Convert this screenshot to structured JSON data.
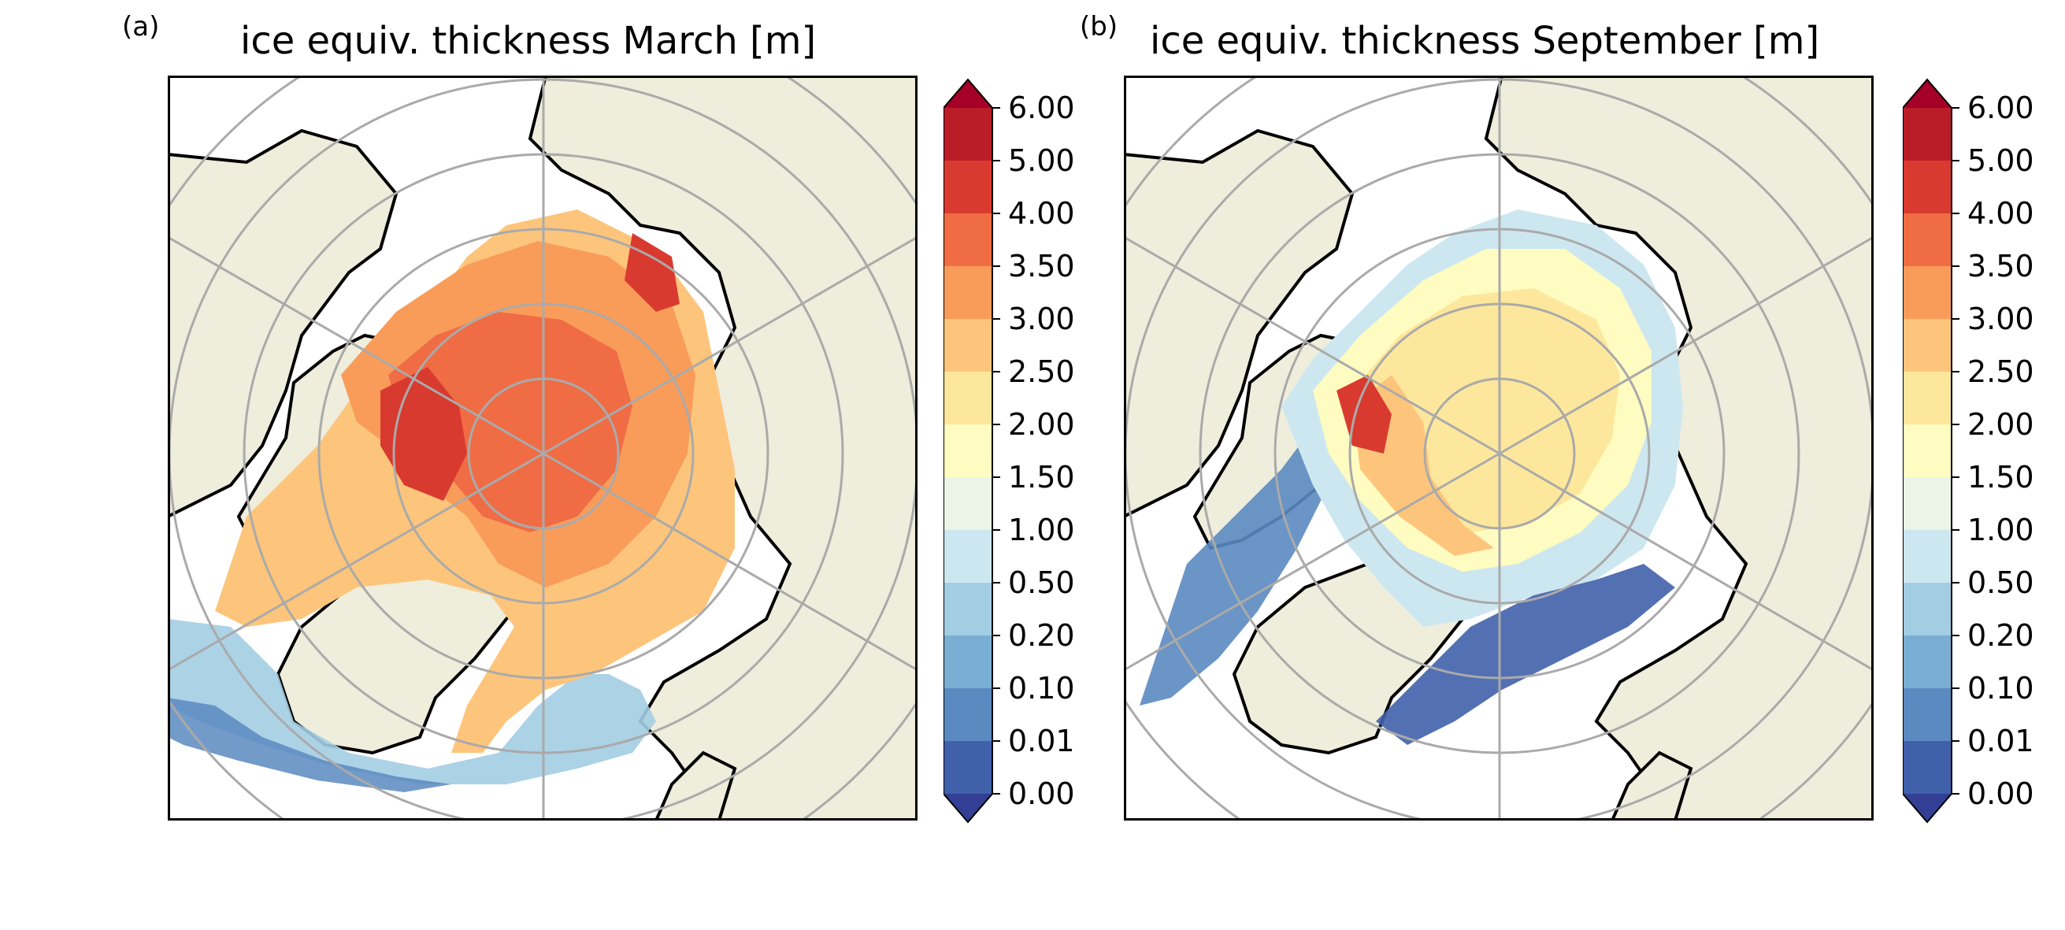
{
  "colormap": [
    "#323f94",
    "#4060aa",
    "#5a8ac0",
    "#7aaed3",
    "#a3cde3",
    "#cde7f0",
    "#ebf4e7",
    "#fffcc1",
    "#fde79c",
    "#fdc57c",
    "#f99c5a",
    "#f06c45",
    "#d93a2f",
    "#bb1d28",
    "#a50027"
  ],
  "land_color": "#efeddb",
  "ocean_color": "#ffffff",
  "graticule_color": "#aaaaaa",
  "panels": [
    {
      "letter": "(a)",
      "title": "ice equiv. thickness March [m]",
      "colorbar": {
        "levels": [
          "0.00",
          "0.01",
          "0.10",
          "0.20",
          "0.50",
          "1.00",
          "1.50",
          "2.00",
          "2.50",
          "3.00",
          "3.50",
          "4.00",
          "5.00",
          "6.00"
        ],
        "extend": "both"
      }
    },
    {
      "letter": "(b)",
      "title": "ice equiv. thickness September [m]",
      "colorbar": {
        "levels": [
          "0.00",
          "0.01",
          "0.10",
          "0.20",
          "0.50",
          "1.00",
          "1.50",
          "2.00",
          "2.50",
          "3.00",
          "3.50",
          "4.00",
          "5.00",
          "6.00"
        ],
        "extend": "both"
      }
    }
  ]
}
